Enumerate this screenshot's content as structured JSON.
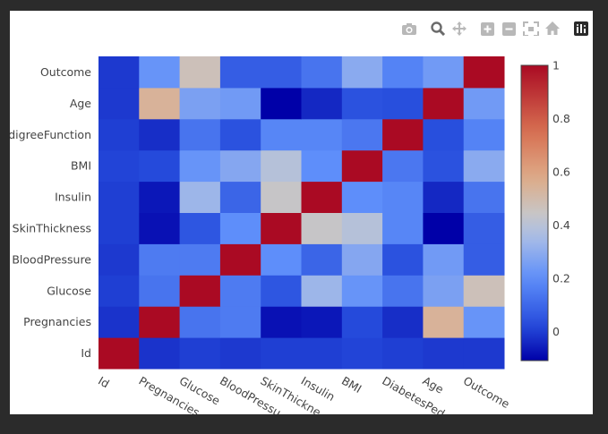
{
  "toolbar": {
    "buttons": [
      {
        "name": "camera-icon",
        "label": "Download plot as a png"
      },
      {
        "name": "zoom-icon",
        "label": "Zoom"
      },
      {
        "name": "pan-icon",
        "label": "Pan"
      },
      {
        "name": "zoom-in-icon",
        "label": "Zoom in"
      },
      {
        "name": "zoom-out-icon",
        "label": "Zoom out"
      },
      {
        "name": "autoscale-icon",
        "label": "Autoscale"
      },
      {
        "name": "home-icon",
        "label": "Reset axes"
      },
      {
        "name": "plotly-logo-icon",
        "label": "Produced with Plotly"
      }
    ]
  },
  "chart_data": {
    "type": "heatmap",
    "x_categories": [
      "Id",
      "Pregnancies",
      "Glucose",
      "BloodPressure",
      "SkinThickness",
      "Insulin",
      "BMI",
      "DiabetesPedigreeFunction",
      "Age",
      "Outcome"
    ],
    "y_categories": [
      "Id",
      "Pregnancies",
      "Glucose",
      "BloodPressure",
      "SkinThickness",
      "Insulin",
      "BMI",
      "DiabetesPedigreeFunction",
      "Age",
      "Outcome"
    ],
    "y_tick_labels_visible": [
      "Id",
      "Pregnancies",
      "Glucose",
      "BloodPressure",
      "SkinThickness",
      "Insulin",
      "BMI",
      "edigreeFunction",
      "Age",
      "Outcome"
    ],
    "x_tick_labels_visible": [
      "Id",
      "Pregnancies",
      "Glucose",
      "BloodPressu",
      "SkinThickne",
      "Insulin",
      "BMI",
      "DiabetesPed",
      "Age",
      "Outcome"
    ],
    "z": [
      [
        1.0,
        -0.02,
        0.0,
        -0.01,
        0.0,
        0.0,
        0.01,
        0.0,
        -0.01,
        -0.01
      ],
      [
        -0.02,
        1.0,
        0.13,
        0.15,
        -0.08,
        -0.07,
        0.02,
        -0.03,
        0.54,
        0.22
      ],
      [
        0.0,
        0.13,
        1.0,
        0.15,
        0.05,
        0.33,
        0.22,
        0.13,
        0.26,
        0.47
      ],
      [
        -0.01,
        0.15,
        0.15,
        1.0,
        0.2,
        0.09,
        0.28,
        0.04,
        0.24,
        0.07
      ],
      [
        0.0,
        -0.08,
        0.05,
        0.2,
        1.0,
        0.44,
        0.39,
        0.18,
        -0.11,
        0.07
      ],
      [
        0.0,
        -0.07,
        0.33,
        0.09,
        0.44,
        1.0,
        0.2,
        0.18,
        -0.04,
        0.13
      ],
      [
        0.01,
        0.02,
        0.22,
        0.28,
        0.39,
        0.2,
        1.0,
        0.14,
        0.04,
        0.29
      ],
      [
        0.0,
        -0.03,
        0.13,
        0.04,
        0.18,
        0.18,
        0.14,
        1.0,
        0.03,
        0.17
      ],
      [
        -0.01,
        0.54,
        0.26,
        0.24,
        -0.11,
        -0.04,
        0.04,
        0.03,
        1.0,
        0.24
      ],
      [
        -0.01,
        0.22,
        0.47,
        0.07,
        0.07,
        0.13,
        0.29,
        0.17,
        0.24,
        1.0
      ]
    ],
    "zmin": -0.11,
    "zmax": 1.0,
    "colorscale": "coolwarm",
    "colorbar": {
      "ticks": [
        0,
        0.2,
        0.4,
        0.6,
        0.8,
        1
      ],
      "tick_labels": [
        "0",
        "0.2",
        "0.4",
        "0.6",
        "0.8",
        "1"
      ]
    },
    "title": "",
    "xlabel": "",
    "ylabel": ""
  }
}
